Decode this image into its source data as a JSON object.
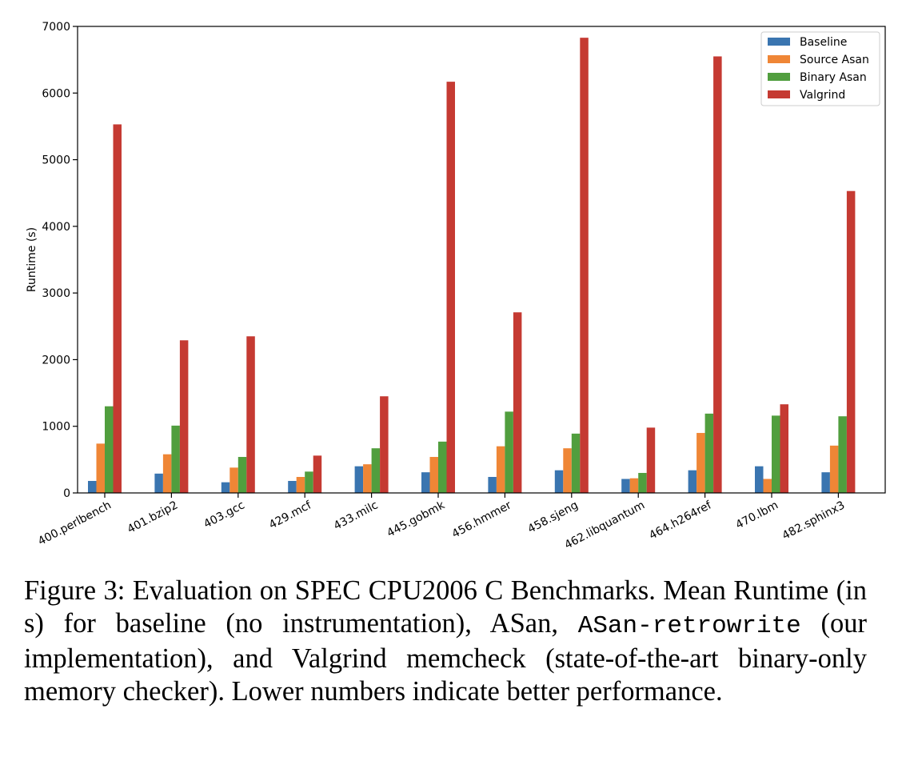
{
  "chart_data": {
    "type": "bar",
    "ylabel": "Runtime (s)",
    "xlabel": "",
    "ylim": [
      0,
      7000
    ],
    "yticks": [
      0,
      1000,
      2000,
      3000,
      4000,
      5000,
      6000,
      7000
    ],
    "legend_position": "top-right",
    "grid": false,
    "categories": [
      "400.perlbench",
      "401.bzip2",
      "403.gcc",
      "429.mcf",
      "433.milc",
      "445.gobmk",
      "456.hmmer",
      "458.sjeng",
      "462.libquantum",
      "464.h264ref",
      "470.lbm",
      "482.sphinx3"
    ],
    "series": [
      {
        "name": "Baseline",
        "color": "#3a75b0",
        "values": [
          180,
          290,
          160,
          180,
          400,
          310,
          240,
          340,
          210,
          340,
          400,
          310
        ]
      },
      {
        "name": "Source Asan",
        "color": "#ef8636",
        "values": [
          740,
          580,
          380,
          240,
          430,
          540,
          700,
          670,
          220,
          900,
          210,
          710
        ]
      },
      {
        "name": "Binary Asan",
        "color": "#519e3e",
        "values": [
          1300,
          1010,
          540,
          320,
          670,
          770,
          1220,
          890,
          300,
          1190,
          1160,
          1150
        ]
      },
      {
        "name": "Valgrind",
        "color": "#c53a32",
        "values": [
          5530,
          2290,
          2350,
          560,
          1450,
          6170,
          2710,
          6830,
          980,
          6550,
          1330,
          4530
        ]
      }
    ]
  },
  "caption": {
    "part1": "Figure 3: Evaluation on SPEC CPU2006 C Benchmarks. Mean Runtime (in s) for baseline (no instrumentation), ASan, ",
    "code": "ASan-retrowrite",
    "part2": " (our implementation), and Valgrind memcheck (state-of-the-art binary-only memory checker). Lower numbers indicate better performance."
  }
}
